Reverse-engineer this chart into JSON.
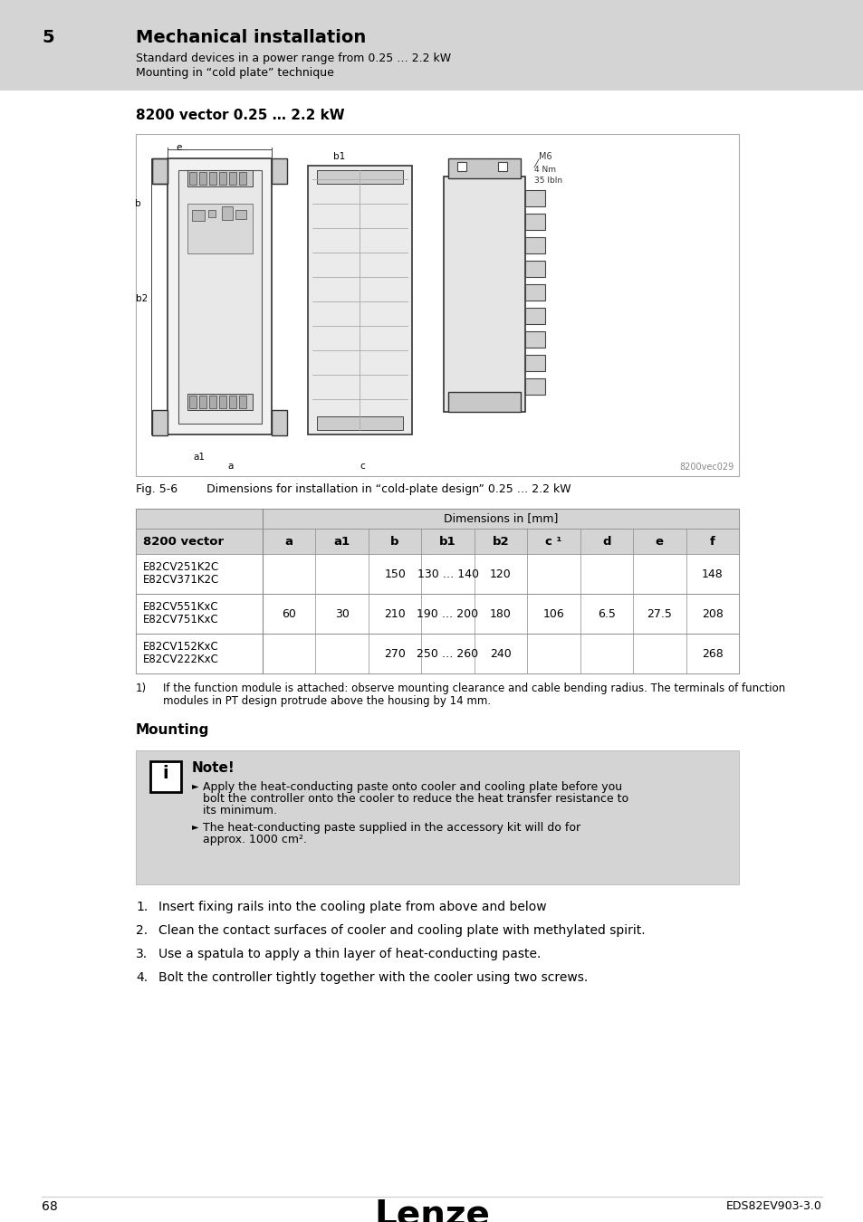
{
  "page_bg": "#ffffff",
  "header_bg": "#d4d4d4",
  "header_num": "5",
  "header_title": "Mechanical installation",
  "header_sub1": "Standard devices in a power range from 0.25 … 2.2 kW",
  "header_sub2": "Mounting in “cold plate” technique",
  "section_title": "8200 vector 0.25 … 2.2 kW",
  "fig_caption": "Fig. 5-6        Dimensions for installation in “cold-plate design” 0.25 … 2.2 kW",
  "fig_watermark": "8200vec029",
  "table_header_bg": "#d4d4d4",
  "table_dim_header": "Dimensions in [mm]",
  "table_col0_header": "8200 vector",
  "table_cols": [
    "a",
    "a1",
    "b",
    "b1",
    "b2",
    "c ¹",
    "d",
    "e",
    "f"
  ],
  "table_rows": [
    [
      "E82CV251K2C\nE82CV371K2C",
      "",
      "",
      "150",
      "130 … 140",
      "120",
      "",
      "",
      "",
      "148"
    ],
    [
      "E82CV551KxC\nE82CV751KxC",
      "60",
      "30",
      "210",
      "190 … 200",
      "180",
      "106",
      "6.5",
      "27.5",
      "208"
    ],
    [
      "E82CV152KxC\nE82CV222KxC",
      "",
      "",
      "270",
      "250 … 260",
      "240",
      "",
      "",
      "",
      "268"
    ]
  ],
  "footnote_num": "1)",
  "footnote_text": "If the function module is attached: observe mounting clearance and cable bending radius. The terminals of function\nmodules in PT design protrude above the housing by 14 mm.",
  "mounting_title": "Mounting",
  "note_bg": "#d4d4d4",
  "note_title": "Note!",
  "note_bullet1_lines": [
    "Apply the heat-conducting paste onto cooler and cooling plate before you",
    "bolt the controller onto the cooler to reduce the heat transfer resistance to",
    "its minimum."
  ],
  "note_bullet2_lines": [
    "The heat-conducting paste supplied in the accessory kit will do for",
    "approx. 1000 cm²."
  ],
  "numbered_items": [
    "Insert fixing rails into the cooling plate from above and below",
    "Clean the contact surfaces of cooler and cooling plate with methylated spirit.",
    "Use a spatula to apply a thin layer of heat-conducting paste.",
    "Bolt the controller tightly together with the cooler using two screws."
  ],
  "footer_page": "68",
  "footer_logo": "Lenze",
  "footer_doc": "EDS82EV903-3.0"
}
